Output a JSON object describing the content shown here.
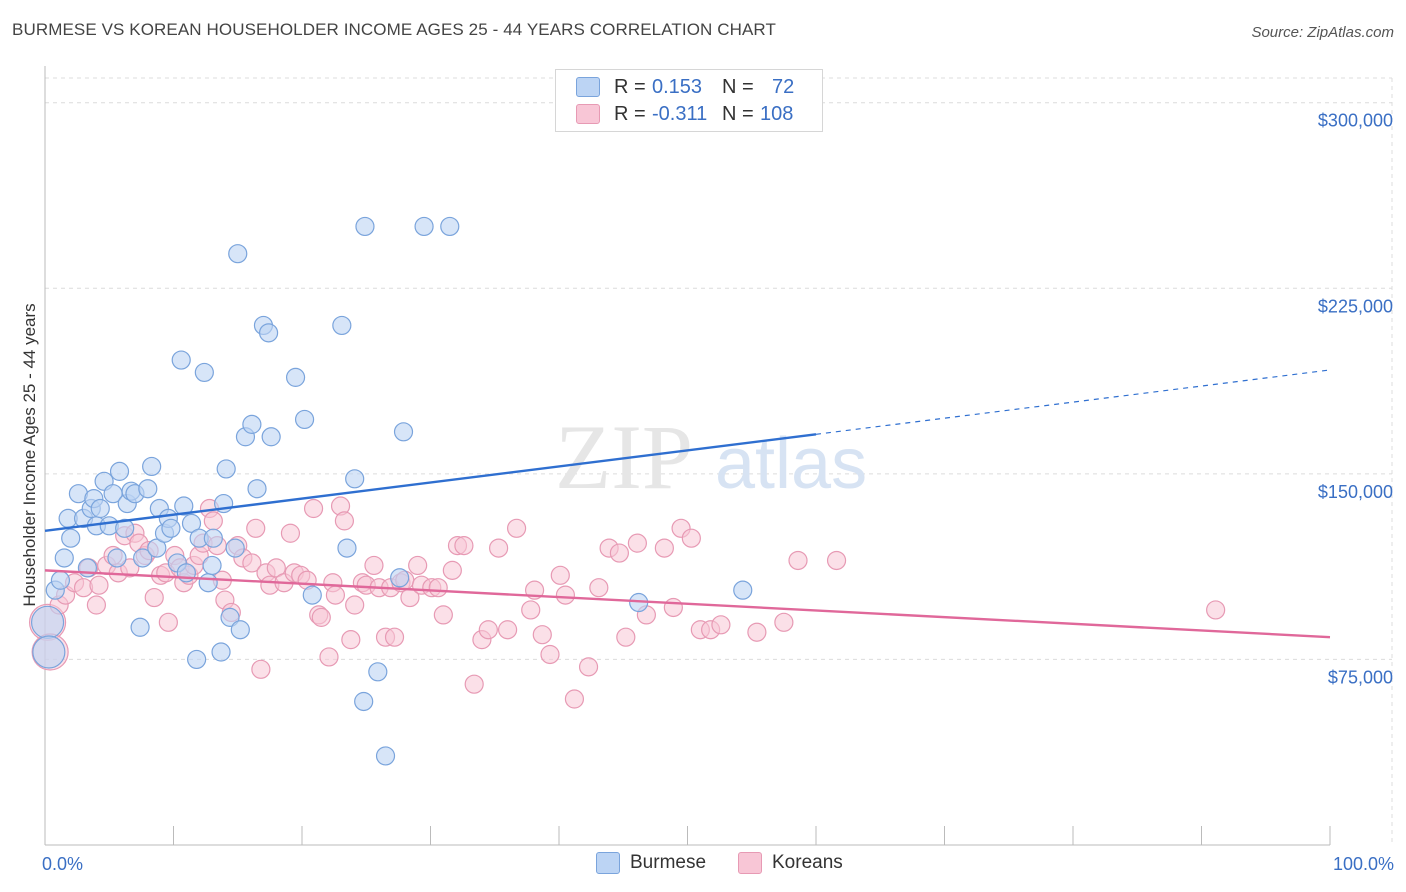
{
  "header": {
    "title": "BURMESE VS KOREAN HOUSEHOLDER INCOME AGES 25 - 44 YEARS CORRELATION CHART",
    "source": "Source: ZipAtlas.com"
  },
  "watermark": {
    "zip": "ZIP",
    "atlas": "atlas"
  },
  "legend": {
    "rows": [
      {
        "r_label": "R =",
        "r_value": "0.153",
        "n_label": "N =",
        "n_value": "72",
        "color": "#a9c8f0"
      },
      {
        "r_label": "R =",
        "r_value": "-0.311",
        "n_label": "N =",
        "n_value": "108",
        "color": "#f5b8cb"
      }
    ]
  },
  "bottom_legend": [
    "Burmese",
    "Koreans"
  ],
  "colors": {
    "burmese_fill": "#bcd4f4",
    "burmese_stroke": "#7aa4dc",
    "burmese_line": "#2f6fd0",
    "korean_fill": "#f8c6d6",
    "korean_stroke": "#e79ab4",
    "korean_line": "#e0689a",
    "grid": "#dcdcdc",
    "axis_text": "#3a6fc4"
  },
  "chart_data": {
    "type": "scatter",
    "title": "BURMESE VS KOREAN HOUSEHOLDER INCOME AGES 25 - 44 YEARS CORRELATION CHART",
    "xlabel": "",
    "ylabel": "Householder Income Ages 25 - 44 years",
    "xlim": [
      0,
      100
    ],
    "ylim": [
      0,
      310000
    ],
    "x_tick_labels": [
      "0.0%",
      "100.0%"
    ],
    "y_ticks": [
      75000,
      150000,
      225000,
      300000
    ],
    "y_tick_labels": [
      "$75,000",
      "$150,000",
      "$225,000",
      "$300,000"
    ],
    "grid": true,
    "legend_position": "top-center",
    "series": [
      {
        "name": "Burmese",
        "r": 0.153,
        "n": 72,
        "trend": {
          "x0": 0,
          "y0": 127000,
          "x1": 60,
          "y1": 166000,
          "dashed_to_x": 100,
          "dashed_to_y": 192000
        },
        "points": [
          [
            0.2,
            90000
          ],
          [
            0.3,
            78000
          ],
          [
            0.8,
            103000
          ],
          [
            1.2,
            107000
          ],
          [
            1.5,
            116000
          ],
          [
            2.0,
            124000
          ],
          [
            1.8,
            132000
          ],
          [
            2.6,
            142000
          ],
          [
            3.0,
            132000
          ],
          [
            3.3,
            112000
          ],
          [
            3.6,
            136000
          ],
          [
            3.8,
            140000
          ],
          [
            4.0,
            129000
          ],
          [
            4.3,
            136000
          ],
          [
            4.6,
            147000
          ],
          [
            5.0,
            129000
          ],
          [
            5.3,
            142000
          ],
          [
            5.6,
            116000
          ],
          [
            5.8,
            151000
          ],
          [
            6.2,
            128000
          ],
          [
            6.4,
            138000
          ],
          [
            6.7,
            143000
          ],
          [
            7.0,
            142000
          ],
          [
            7.4,
            88000
          ],
          [
            7.6,
            116000
          ],
          [
            8.0,
            144000
          ],
          [
            8.3,
            153000
          ],
          [
            8.7,
            120000
          ],
          [
            8.9,
            136000
          ],
          [
            9.3,
            126000
          ],
          [
            9.6,
            132000
          ],
          [
            9.8,
            128000
          ],
          [
            10.3,
            114000
          ],
          [
            10.6,
            196000
          ],
          [
            10.8,
            137000
          ],
          [
            11.0,
            110000
          ],
          [
            11.4,
            130000
          ],
          [
            11.8,
            75000
          ],
          [
            12.0,
            124000
          ],
          [
            12.4,
            191000
          ],
          [
            12.7,
            106000
          ],
          [
            13.0,
            113000
          ],
          [
            13.1,
            124000
          ],
          [
            13.7,
            78000
          ],
          [
            13.9,
            138000
          ],
          [
            14.1,
            152000
          ],
          [
            14.4,
            92000
          ],
          [
            14.8,
            120000
          ],
          [
            15.0,
            239000
          ],
          [
            15.2,
            87000
          ],
          [
            15.6,
            165000
          ],
          [
            16.1,
            170000
          ],
          [
            16.5,
            144000
          ],
          [
            17.0,
            210000
          ],
          [
            17.4,
            207000
          ],
          [
            17.6,
            165000
          ],
          [
            19.5,
            189000
          ],
          [
            20.2,
            172000
          ],
          [
            20.8,
            101000
          ],
          [
            23.1,
            210000
          ],
          [
            23.5,
            120000
          ],
          [
            24.1,
            148000
          ],
          [
            24.8,
            58000
          ],
          [
            24.9,
            250000
          ],
          [
            25.9,
            70000
          ],
          [
            26.5,
            36000
          ],
          [
            27.6,
            108000
          ],
          [
            27.9,
            167000
          ],
          [
            29.5,
            250000
          ],
          [
            31.5,
            250000
          ],
          [
            46.2,
            98000
          ],
          [
            54.3,
            103000
          ]
        ]
      },
      {
        "name": "Koreans",
        "r": -0.311,
        "n": 108,
        "trend": {
          "x0": 0,
          "y0": 111000,
          "x1": 100,
          "y1": 84000
        },
        "points": [
          [
            0.2,
            90000
          ],
          [
            0.4,
            78000
          ],
          [
            1.1,
            97000
          ],
          [
            1.6,
            101000
          ],
          [
            2.3,
            106000
          ],
          [
            3.0,
            104000
          ],
          [
            3.4,
            112000
          ],
          [
            4.0,
            97000
          ],
          [
            4.2,
            105000
          ],
          [
            4.8,
            113000
          ],
          [
            5.3,
            117000
          ],
          [
            5.7,
            110000
          ],
          [
            6.2,
            125000
          ],
          [
            6.6,
            112000
          ],
          [
            7.0,
            126000
          ],
          [
            7.3,
            122000
          ],
          [
            7.8,
            117000
          ],
          [
            8.1,
            119000
          ],
          [
            8.5,
            100000
          ],
          [
            9.0,
            109000
          ],
          [
            9.4,
            110000
          ],
          [
            9.6,
            90000
          ],
          [
            10.1,
            117000
          ],
          [
            10.5,
            112000
          ],
          [
            10.8,
            106000
          ],
          [
            11.2,
            109000
          ],
          [
            11.6,
            113000
          ],
          [
            12.0,
            117000
          ],
          [
            12.3,
            122000
          ],
          [
            12.8,
            136000
          ],
          [
            13.1,
            131000
          ],
          [
            13.4,
            121000
          ],
          [
            13.8,
            107000
          ],
          [
            14.0,
            99000
          ],
          [
            14.5,
            94000
          ],
          [
            15.0,
            121000
          ],
          [
            15.4,
            116000
          ],
          [
            16.1,
            114000
          ],
          [
            16.4,
            128000
          ],
          [
            16.8,
            71000
          ],
          [
            17.2,
            110000
          ],
          [
            17.5,
            105000
          ],
          [
            18.0,
            112000
          ],
          [
            18.6,
            106000
          ],
          [
            19.1,
            126000
          ],
          [
            19.4,
            110000
          ],
          [
            19.9,
            109000
          ],
          [
            20.4,
            107000
          ],
          [
            20.9,
            136000
          ],
          [
            21.3,
            93000
          ],
          [
            21.5,
            92000
          ],
          [
            22.1,
            76000
          ],
          [
            22.4,
            106000
          ],
          [
            22.6,
            101000
          ],
          [
            23.0,
            137000
          ],
          [
            23.3,
            131000
          ],
          [
            23.8,
            83000
          ],
          [
            24.1,
            97000
          ],
          [
            24.7,
            106000
          ],
          [
            25.0,
            105000
          ],
          [
            25.6,
            113000
          ],
          [
            26.0,
            104000
          ],
          [
            26.5,
            84000
          ],
          [
            26.9,
            104000
          ],
          [
            27.2,
            84000
          ],
          [
            27.7,
            106000
          ],
          [
            28.0,
            107000
          ],
          [
            28.4,
            100000
          ],
          [
            29.0,
            113000
          ],
          [
            29.3,
            105000
          ],
          [
            30.1,
            104000
          ],
          [
            30.6,
            104000
          ],
          [
            31.0,
            93000
          ],
          [
            31.7,
            111000
          ],
          [
            32.1,
            121000
          ],
          [
            32.6,
            121000
          ],
          [
            33.4,
            65000
          ],
          [
            34.0,
            83000
          ],
          [
            34.5,
            87000
          ],
          [
            35.3,
            120000
          ],
          [
            36.0,
            87000
          ],
          [
            36.7,
            128000
          ],
          [
            37.8,
            95000
          ],
          [
            38.1,
            103000
          ],
          [
            38.7,
            85000
          ],
          [
            39.3,
            77000
          ],
          [
            40.1,
            109000
          ],
          [
            40.5,
            101000
          ],
          [
            41.2,
            59000
          ],
          [
            42.3,
            72000
          ],
          [
            43.1,
            104000
          ],
          [
            43.9,
            120000
          ],
          [
            44.7,
            118000
          ],
          [
            45.2,
            84000
          ],
          [
            46.1,
            122000
          ],
          [
            46.8,
            93000
          ],
          [
            48.2,
            120000
          ],
          [
            48.9,
            96000
          ],
          [
            49.5,
            128000
          ],
          [
            50.3,
            124000
          ],
          [
            51.0,
            87000
          ],
          [
            51.8,
            87000
          ],
          [
            52.6,
            89000
          ],
          [
            55.4,
            86000
          ],
          [
            57.5,
            90000
          ],
          [
            58.6,
            115000
          ],
          [
            61.6,
            115000
          ],
          [
            91.1,
            95000
          ]
        ]
      }
    ]
  }
}
